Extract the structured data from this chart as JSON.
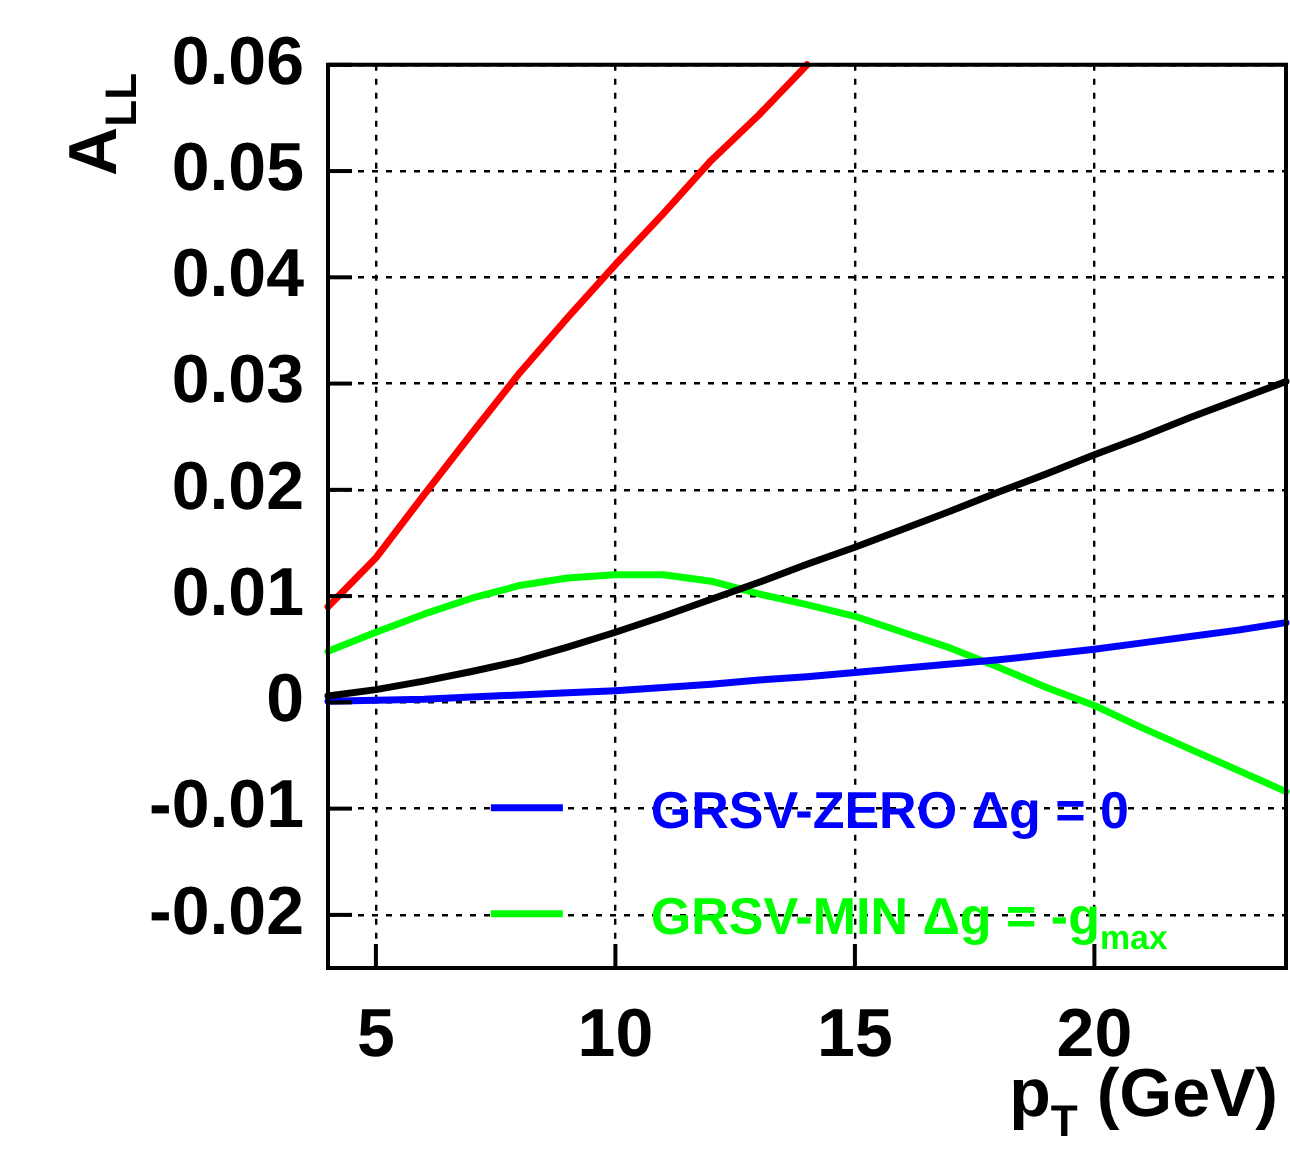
{
  "chart_data": {
    "type": "line",
    "xlabel": "p$_{T}$ (GeV)",
    "ylabel": "A$_{LL}$",
    "xlim": [
      4,
      24
    ],
    "xticks": [
      5,
      10,
      15,
      20
    ],
    "ylim": [
      -0.025,
      0.06
    ],
    "yticks": [
      -0.02,
      -0.01,
      0,
      0.01,
      0.02,
      0.03,
      0.04,
      0.05,
      0.06
    ],
    "grid": true,
    "legend": "bottom",
    "line_style": "solid",
    "marker": "none",
    "series": [
      {
        "color": "#ff0000",
        "x": [
          4,
          5,
          6,
          7,
          8,
          9,
          10,
          11,
          12,
          13,
          14
        ],
        "values": [
          0.009,
          0.0136,
          0.0195,
          0.0253,
          0.031,
          0.0362,
          0.0412,
          0.046,
          0.051,
          0.0553,
          0.06
        ]
      },
      {
        "color": "#000000",
        "x": [
          4,
          5,
          6,
          7,
          8,
          9,
          10,
          11,
          12,
          13,
          14,
          15,
          16,
          17,
          18,
          19,
          20,
          21,
          22,
          23,
          24
        ],
        "values": [
          0.0006,
          0.0012,
          0.002,
          0.0029,
          0.0039,
          0.0052,
          0.0066,
          0.0081,
          0.0097,
          0.0113,
          0.013,
          0.0146,
          0.0163,
          0.018,
          0.0198,
          0.0215,
          0.0233,
          0.025,
          0.0268,
          0.0285,
          0.0302
        ]
      },
      {
        "name": "GRSV-ZERO Δg = 0",
        "color": "#0000ff",
        "x": [
          4,
          5,
          6,
          7,
          8,
          9,
          10,
          11,
          12,
          13,
          14,
          15,
          16,
          17,
          18,
          19,
          20,
          21,
          22,
          23,
          24
        ],
        "values": [
          0.0001,
          0.0002,
          0.0003,
          0.0005,
          0.0007,
          0.0009,
          0.0011,
          0.0014,
          0.0017,
          0.0021,
          0.0024,
          0.0028,
          0.0032,
          0.0036,
          0.004,
          0.0045,
          0.005,
          0.0056,
          0.0062,
          0.0068,
          0.0075
        ]
      },
      {
        "name": "GRSV-MIN Δg = -g$_{max}$",
        "color": "#00ff00",
        "x": [
          4,
          5,
          6,
          7,
          8,
          9,
          10,
          11,
          12,
          13,
          14,
          15,
          16,
          17,
          18,
          19,
          20,
          21,
          22,
          23,
          24
        ],
        "values": [
          0.0048,
          0.0066,
          0.0083,
          0.0098,
          0.011,
          0.0117,
          0.012,
          0.012,
          0.0114,
          0.0102,
          0.0092,
          0.0081,
          0.0066,
          0.0051,
          0.0033,
          0.0014,
          -0.0003,
          -0.0024,
          -0.0044,
          -0.0064,
          -0.0084
        ]
      }
    ]
  }
}
